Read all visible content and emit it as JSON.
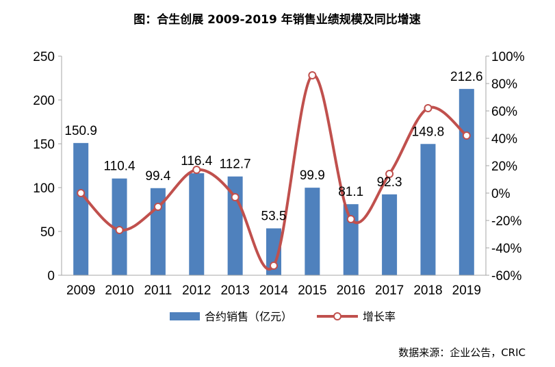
{
  "chart_data": {
    "type": "bar+line",
    "title": "图：合生创展 2009-2019 年销售业绩规模及同比增速",
    "categories": [
      "2009",
      "2010",
      "2011",
      "2012",
      "2013",
      "2014",
      "2015",
      "2016",
      "2017",
      "2018",
      "2019"
    ],
    "series": [
      {
        "name": "合约销售（亿元）",
        "type": "bar",
        "axis": "left",
        "color": "#4f81bd",
        "values": [
          150.9,
          110.4,
          99.4,
          116.4,
          112.7,
          53.5,
          99.9,
          81.1,
          92.3,
          149.8,
          212.6
        ],
        "labels": [
          "150.9",
          "110.4",
          "99.4",
          "116.4",
          "112.7",
          "53.5",
          "99.9",
          "81.1",
          "92.3",
          "149.8",
          "212.6"
        ]
      },
      {
        "name": "增长率",
        "type": "line",
        "axis": "right",
        "color": "#c0504d",
        "values": [
          0,
          -27,
          -10,
          17,
          -3,
          -53,
          86,
          -19,
          14,
          62,
          42
        ]
      }
    ],
    "y_left": {
      "ylim": [
        0,
        250
      ],
      "ticks": [
        0,
        50,
        100,
        150,
        200,
        250
      ],
      "tick_labels": [
        "0",
        "50",
        "100",
        "150",
        "200",
        "250"
      ]
    },
    "y_right": {
      "ylim": [
        -60,
        100
      ],
      "ticks": [
        -60,
        -40,
        -20,
        0,
        20,
        40,
        60,
        80,
        100
      ],
      "tick_labels": [
        "-60%",
        "-40%",
        "-20%",
        "0%",
        "20%",
        "40%",
        "60%",
        "80%",
        "100%"
      ]
    },
    "legend_position": "bottom",
    "grid": false
  },
  "source": "数据来源：企业公告，CRIC"
}
